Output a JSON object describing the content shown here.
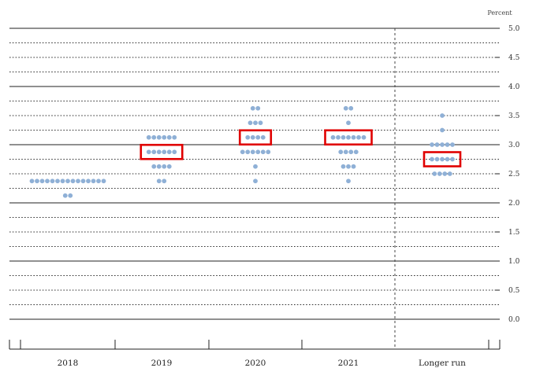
{
  "chart_data": {
    "type": "scatter",
    "subtype": "dot plot",
    "unit_label": "Percent",
    "categories": [
      "2018",
      "2019",
      "2020",
      "2021",
      "Longer run"
    ],
    "ylim": [
      0,
      5
    ],
    "y_ticks": [
      "0.0",
      "0.5",
      "1.0",
      "1.5",
      "2.0",
      "2.5",
      "3.0",
      "3.5",
      "4.0",
      "4.5",
      "5.0"
    ],
    "dot_color": "#8fb0d6",
    "highlight_color": "#e00000",
    "points": [
      {
        "category": "2018",
        "values": [
          {
            "y": 2.375,
            "count": 15
          },
          {
            "y": 2.125,
            "count": 2
          }
        ]
      },
      {
        "category": "2019",
        "values": [
          {
            "y": 3.125,
            "count": 6
          },
          {
            "y": 2.875,
            "count": 6
          },
          {
            "y": 2.625,
            "count": 4
          },
          {
            "y": 2.375,
            "count": 2
          }
        ]
      },
      {
        "category": "2020",
        "values": [
          {
            "y": 3.625,
            "count": 2
          },
          {
            "y": 3.375,
            "count": 3
          },
          {
            "y": 3.125,
            "count": 4
          },
          {
            "y": 2.875,
            "count": 6
          },
          {
            "y": 2.625,
            "count": 1
          },
          {
            "y": 2.375,
            "count": 1
          }
        ]
      },
      {
        "category": "2021",
        "values": [
          {
            "y": 3.625,
            "count": 2
          },
          {
            "y": 3.375,
            "count": 1
          },
          {
            "y": 3.125,
            "count": 7
          },
          {
            "y": 2.875,
            "count": 4
          },
          {
            "y": 2.625,
            "count": 3
          },
          {
            "y": 2.375,
            "count": 1
          }
        ]
      },
      {
        "category": "Longer run",
        "values": [
          {
            "y": 3.5,
            "count": 1
          },
          {
            "y": 3.25,
            "count": 1
          },
          {
            "y": 3.0,
            "count": 5
          },
          {
            "y": 2.75,
            "count": 5
          },
          {
            "y": 2.5,
            "count": 4
          }
        ]
      }
    ],
    "highlights": [
      {
        "category": "2019",
        "y": 2.875
      },
      {
        "category": "2020",
        "y": 3.125
      },
      {
        "category": "2021",
        "y": 3.125
      },
      {
        "category": "Longer run",
        "y": 2.75
      }
    ],
    "grid": true,
    "legend": "none"
  }
}
